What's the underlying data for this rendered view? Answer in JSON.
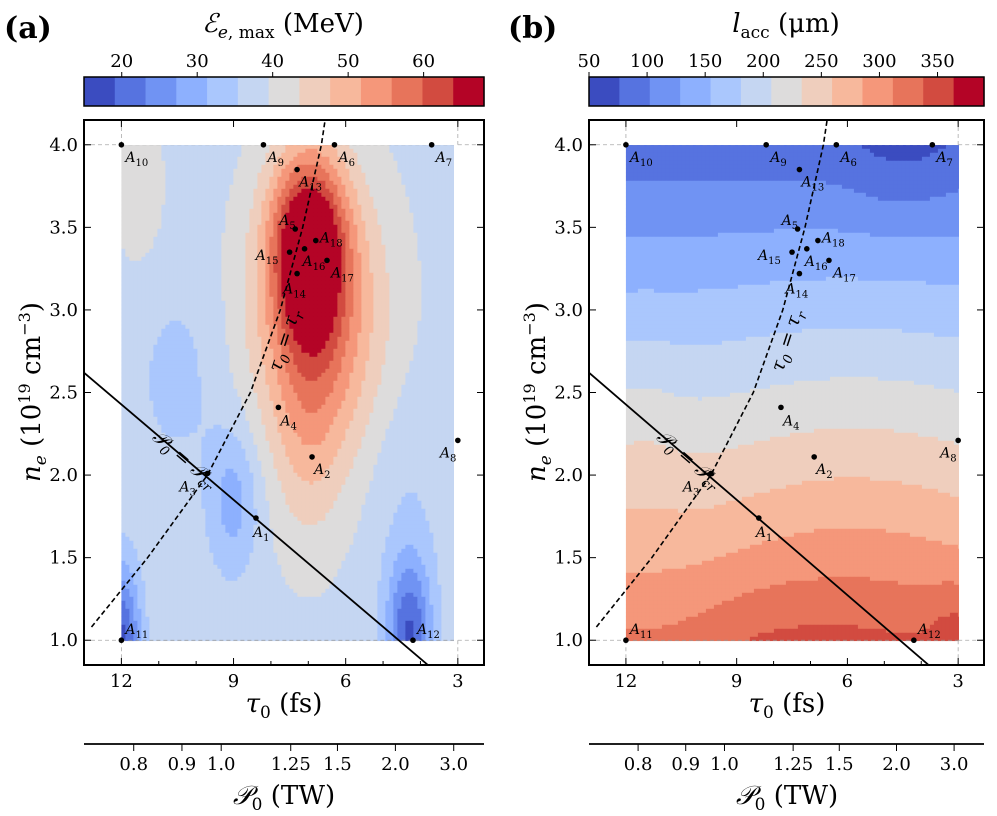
{
  "chart_data": [
    {
      "type": "contour",
      "panel": "(a)",
      "colorbar": {
        "title": "ℰe,max (MeV)",
        "ticks": [
          20,
          30,
          40,
          50,
          60
        ],
        "range": [
          15,
          68
        ],
        "levels": 12
      },
      "xlabel": "τ0 (fs)",
      "ylabel": "ne (10¹⁹ cm⁻³)",
      "xlim": [
        13,
        2.3
      ],
      "ylim": [
        0.85,
        4.15
      ],
      "xticks": [
        12,
        9,
        6,
        3
      ],
      "yticks": [
        1.0,
        1.5,
        2.0,
        2.5,
        3.0,
        3.5,
        4.0
      ],
      "x2label": "𝒫0 (TW)",
      "x2ticks": [
        {
          "label": "0.8",
          "tau": 11.67
        },
        {
          "label": "0.9",
          "tau": 10.38
        },
        {
          "label": "1.0",
          "tau": 9.33
        },
        {
          "label": "1.25",
          "tau": 7.47
        },
        {
          "label": "1.5",
          "tau": 6.22
        },
        {
          "label": "2.0",
          "tau": 4.67
        },
        {
          "label": "3.0",
          "tau": 3.11
        }
      ],
      "field_features": [
        {
          "tau": 7.0,
          "ne": 3.4,
          "value": 66,
          "sx": 1.0,
          "sy": 0.55
        },
        {
          "tau": 6.7,
          "ne": 2.9,
          "value": 55,
          "sx": 1.8,
          "sy": 0.9
        },
        {
          "tau": 12.0,
          "ne": 1.0,
          "value": 18,
          "sx": 0.5,
          "sy": 0.45
        },
        {
          "tau": 4.3,
          "ne": 1.05,
          "value": 19,
          "sx": 0.6,
          "sy": 0.45
        },
        {
          "tau": 9.0,
          "ne": 1.85,
          "value": 29,
          "sx": 0.7,
          "sy": 0.45
        }
      ],
      "annotations": {
        "diag_line": "𝒫0 = 𝒫cr",
        "curve": "τ0 = τr"
      }
    },
    {
      "type": "contour",
      "panel": "(b)",
      "colorbar": {
        "title": "lacc (μm)",
        "ticks": [
          50,
          100,
          150,
          200,
          250,
          300,
          350
        ],
        "range": [
          50,
          390
        ],
        "levels": 12
      },
      "xlabel": "τ0 (fs)",
      "ylabel": "ne (10¹⁹ cm⁻³)",
      "xlim": [
        13,
        2.3
      ],
      "ylim": [
        0.85,
        4.15
      ],
      "xticks": [
        12,
        9,
        6,
        3
      ],
      "yticks": [
        1.0,
        1.5,
        2.0,
        2.5,
        3.0,
        3.5,
        4.0
      ],
      "x2label": "𝒫0 (TW)",
      "x2ticks": [
        {
          "label": "0.8",
          "tau": 11.67
        },
        {
          "label": "0.9",
          "tau": 10.38
        },
        {
          "label": "1.0",
          "tau": 9.33
        },
        {
          "label": "1.25",
          "tau": 7.47
        },
        {
          "label": "1.5",
          "tau": 6.22
        },
        {
          "label": "2.0",
          "tau": 4.67
        },
        {
          "label": "3.0",
          "tau": 3.11
        }
      ],
      "annotations": {
        "diag_line": "𝒫0 = 𝒫cr",
        "curve": "τ0 = τr"
      }
    }
  ],
  "points": [
    {
      "name": "A1",
      "tau": 8.4,
      "ne": 1.74
    },
    {
      "name": "A2",
      "tau": 6.9,
      "ne": 2.11
    },
    {
      "name": "A3",
      "tau": 9.7,
      "ne": 2.01
    },
    {
      "name": "A4",
      "tau": 7.8,
      "ne": 2.41
    },
    {
      "name": "A5",
      "tau": 7.35,
      "ne": 3.49
    },
    {
      "name": "A6",
      "tau": 6.3,
      "ne": 4.0
    },
    {
      "name": "A7",
      "tau": 3.7,
      "ne": 4.0
    },
    {
      "name": "A8",
      "tau": 3.0,
      "ne": 2.21
    },
    {
      "name": "A9",
      "tau": 8.2,
      "ne": 4.0
    },
    {
      "name": "A10",
      "tau": 12.0,
      "ne": 4.0
    },
    {
      "name": "A11",
      "tau": 12.0,
      "ne": 1.0
    },
    {
      "name": "A12",
      "tau": 4.2,
      "ne": 1.0
    },
    {
      "name": "A13",
      "tau": 7.3,
      "ne": 3.85
    },
    {
      "name": "A14",
      "tau": 7.3,
      "ne": 3.22
    },
    {
      "name": "A15",
      "tau": 7.5,
      "ne": 3.35
    },
    {
      "name": "A16",
      "tau": 7.1,
      "ne": 3.37
    },
    {
      "name": "A17",
      "tau": 6.5,
      "ne": 3.3
    },
    {
      "name": "A18",
      "tau": 6.8,
      "ne": 3.42
    }
  ],
  "diag_line": {
    "tau": [
      13.0,
      3.8
    ],
    "ne": [
      2.62,
      0.85
    ]
  },
  "tau_r_curve": {
    "ne": [
      1.08,
      1.5,
      2.0,
      2.5,
      3.0,
      3.5,
      4.0,
      4.15
    ],
    "tau": [
      12.8,
      11.3,
      9.7,
      8.55,
      7.75,
      7.15,
      6.65,
      6.55
    ]
  },
  "labels": {
    "panel_a": "(a)",
    "panel_b": "(b)",
    "cb_a_script": "ℰ",
    "cb_a_sub": "e",
    "cb_a_sub2": ", max",
    "cb_a_unit": " (MeV)",
    "cb_b_main": "l",
    "cb_b_sub": "acc",
    "cb_b_unit": " (μm)",
    "tau_sym": "τ",
    "tau_sub": "0",
    "tau_unit": " (fs)",
    "ne_sym": "n",
    "ne_sub": "e",
    "ne_unit": " (10",
    "ne_exp": "19",
    "ne_unit2": " cm",
    "ne_exp2": "−3",
    "ne_close": ")",
    "p_sym": "𝒫",
    "p_sub": "0",
    "p_unit": " (TW)",
    "diag_a": "𝒫",
    "diag_sub1": "0",
    "diag_eq": " = ",
    "diag_b": "𝒫",
    "diag_sub2": "cr",
    "curve_a": "τ",
    "curve_sub1": "0",
    "curve_eq": " = ",
    "curve_b": "τ",
    "curve_sub2": "r"
  },
  "colors": {
    "cmap": [
      "#3b4cc0",
      "#5673e0",
      "#7093f3",
      "#8db0fe",
      "#aac7fd",
      "#c5d6f2",
      "#dddcdc",
      "#efcebd",
      "#f7b89c",
      "#f5977a",
      "#e7745b",
      "#d24b40",
      "#b40426"
    ]
  }
}
